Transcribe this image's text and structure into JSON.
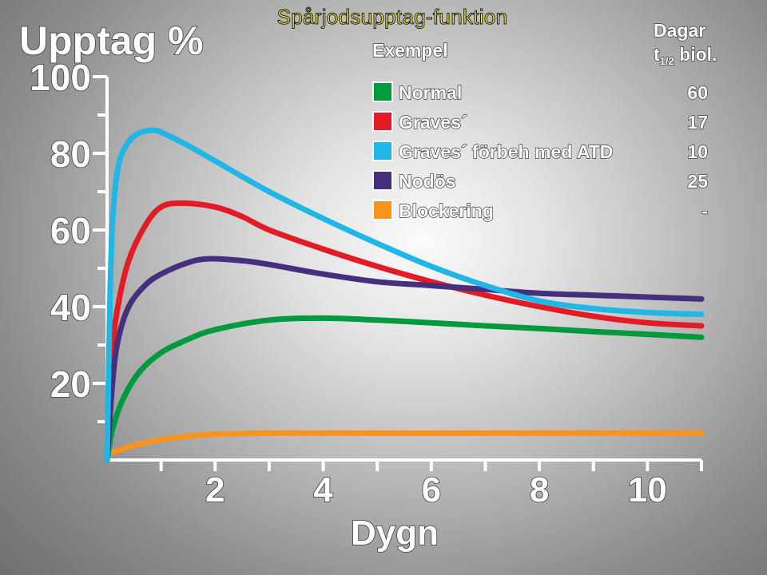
{
  "slide_title": "Spårjodsupptag-funktion",
  "chart_data": {
    "type": "line",
    "ylabel": "Upptag %",
    "xlabel": "Dygn",
    "xlim": [
      0,
      11
    ],
    "ylim": [
      0,
      100
    ],
    "x_ticks": [
      2,
      4,
      6,
      8,
      10
    ],
    "y_ticks": [
      20,
      40,
      60,
      80,
      100
    ],
    "legend_title": "Exempel",
    "legend_value_header": [
      "Dagar",
      "t",
      "1/2",
      " biol."
    ],
    "legend_placement": "top-right",
    "grid": false,
    "series": [
      {
        "name": "Normal",
        "half_life": "60",
        "color": "#009a3e",
        "x": [
          0,
          0.1,
          0.3,
          0.6,
          1,
          1.5,
          2,
          3,
          4,
          5,
          6,
          7,
          8,
          9,
          10,
          11
        ],
        "y": [
          0,
          8,
          16,
          23,
          28,
          31.5,
          34,
          36.5,
          37,
          36.5,
          35.8,
          35,
          34.3,
          33.5,
          32.8,
          32
        ]
      },
      {
        "name": "Graves´",
        "half_life": "17",
        "color": "#e21c26",
        "x": [
          0,
          0.1,
          0.2,
          0.4,
          0.7,
          1,
          1.4,
          2,
          2.5,
          3,
          4,
          5,
          6,
          7,
          8,
          9,
          10,
          11
        ],
        "y": [
          0,
          28,
          40,
          52,
          61,
          66,
          67,
          66,
          63.5,
          60,
          55,
          50.5,
          46.5,
          43,
          40,
          37.5,
          35.8,
          35
        ]
      },
      {
        "name": "Graves´ förbeh med ATD",
        "half_life": "10",
        "color": "#20b6e6",
        "x": [
          0,
          0.05,
          0.1,
          0.2,
          0.35,
          0.55,
          0.8,
          1,
          1.5,
          2,
          3,
          4,
          5,
          6,
          7,
          8,
          9,
          10,
          11
        ],
        "y": [
          0,
          40,
          62,
          76,
          82,
          85,
          86,
          85.5,
          82,
          78,
          70,
          63,
          56.5,
          50.5,
          45.5,
          41.5,
          39.5,
          38.5,
          38
        ]
      },
      {
        "name": "Nodös",
        "half_life": "25",
        "color": "#46307e",
        "x": [
          0,
          0.1,
          0.2,
          0.4,
          0.7,
          1,
          1.5,
          1.9,
          2.5,
          3,
          4,
          5,
          6,
          7,
          8,
          9,
          10,
          11
        ],
        "y": [
          0,
          20,
          31,
          40,
          45.5,
          48.5,
          51.5,
          52.5,
          52,
          51,
          48.5,
          46.5,
          45.5,
          44.5,
          43.5,
          43,
          42.5,
          42
        ]
      },
      {
        "name": "Blockering",
        "half_life": "-",
        "color": "#f7941d",
        "x": [
          0.1,
          0.5,
          1,
          1.5,
          2,
          3,
          4,
          6,
          8,
          10,
          11
        ],
        "y": [
          2,
          3.8,
          5.3,
          6.2,
          6.7,
          7,
          7,
          7,
          7,
          7,
          7
        ]
      }
    ]
  }
}
